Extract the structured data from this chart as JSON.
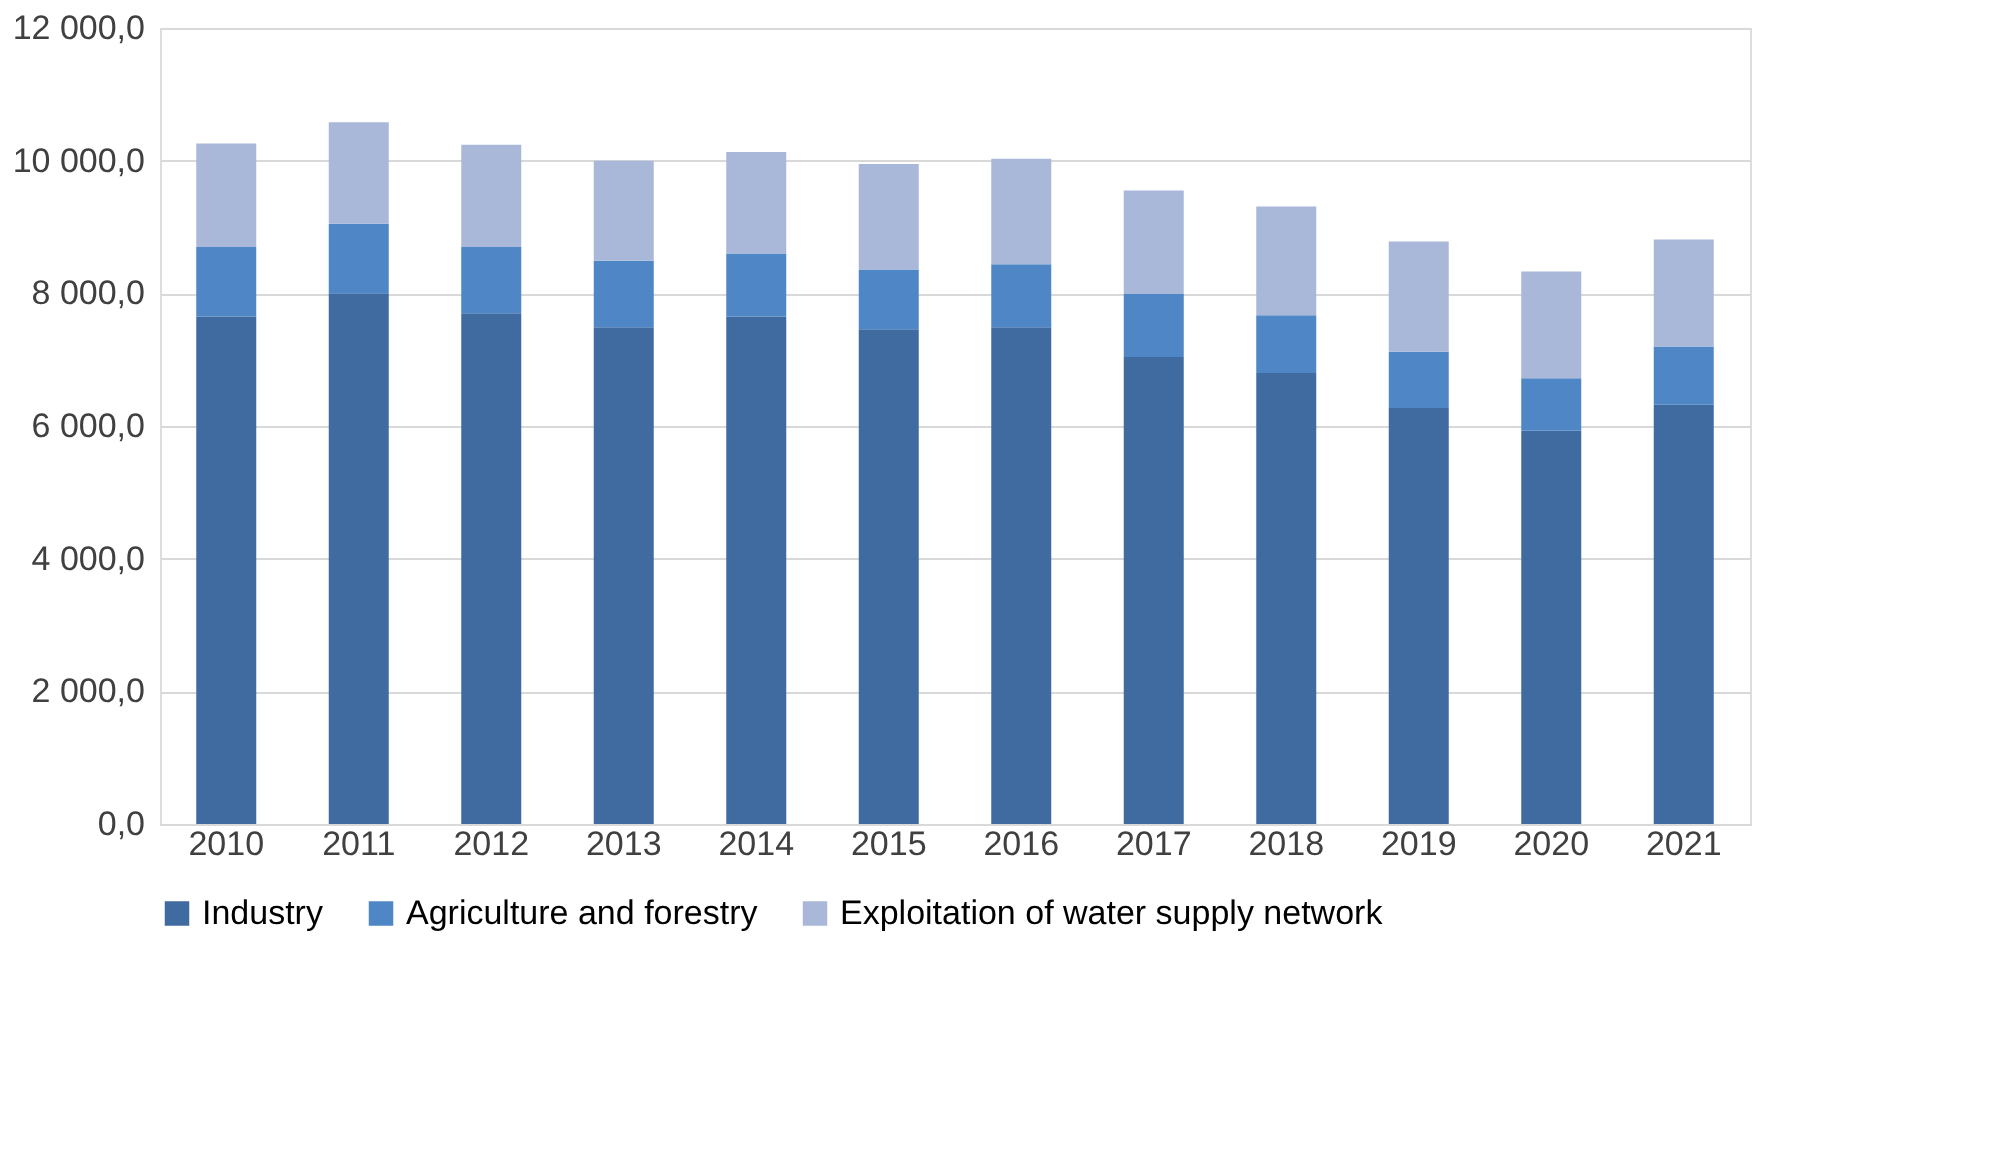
{
  "chart_data": {
    "type": "bar",
    "stacked": true,
    "categories": [
      "2010",
      "2011",
      "2012",
      "2013",
      "2014",
      "2015",
      "2016",
      "2017",
      "2018",
      "2019",
      "2020",
      "2021"
    ],
    "series": [
      {
        "name": "Industry",
        "color": "#3f6ba0",
        "values": [
          7650,
          8000,
          7700,
          7490,
          7650,
          7460,
          7490,
          7040,
          6800,
          6270,
          5930,
          6320
        ]
      },
      {
        "name": "Agriculture and forestry",
        "color": "#4f86c6",
        "values": [
          1050,
          1050,
          1000,
          1000,
          950,
          900,
          950,
          950,
          870,
          850,
          790,
          880
        ]
      },
      {
        "name": "Exploitation of water supply network",
        "color": "#a9b8d9",
        "values": [
          1560,
          1530,
          1540,
          1510,
          1530,
          1590,
          1590,
          1560,
          1640,
          1660,
          1610,
          1610
        ]
      }
    ],
    "ylim": [
      0,
      12000
    ],
    "yticks": [
      {
        "value": 0,
        "label": "0,0"
      },
      {
        "value": 2000,
        "label": "2 000,0"
      },
      {
        "value": 4000,
        "label": "4 000,0"
      },
      {
        "value": 6000,
        "label": "6 000,0"
      },
      {
        "value": 8000,
        "label": "8 000,0"
      },
      {
        "value": 10000,
        "label": "10 000,0"
      },
      {
        "value": 12000,
        "label": "12 000,0"
      }
    ],
    "grid": "y",
    "legend": "bottom"
  }
}
